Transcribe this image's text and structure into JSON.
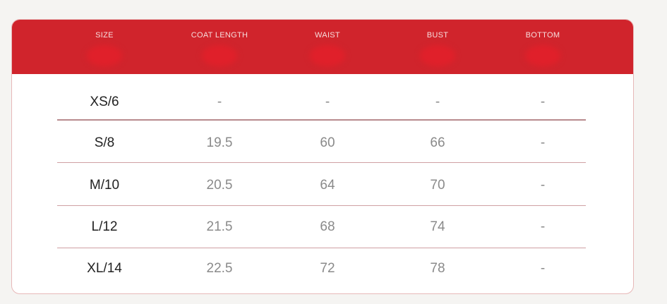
{
  "table": {
    "headers": [
      "SIZE",
      "COAT LENGTH",
      "WAIST",
      "BUST",
      "BOTTOM"
    ],
    "rows": [
      [
        "XS/6",
        "-",
        "-",
        "-",
        "-"
      ],
      [
        "S/8",
        "19.5",
        "60",
        "66",
        "-"
      ],
      [
        "M/10",
        "20.5",
        "64",
        "70",
        "-"
      ],
      [
        "L/12",
        "21.5",
        "68",
        "74",
        "-"
      ],
      [
        "XL/14",
        "22.5",
        "72",
        "78",
        "-"
      ]
    ]
  },
  "colors": {
    "header": "#d0242c",
    "background": "#f5f4f2",
    "divider": "#cfa0a3"
  }
}
